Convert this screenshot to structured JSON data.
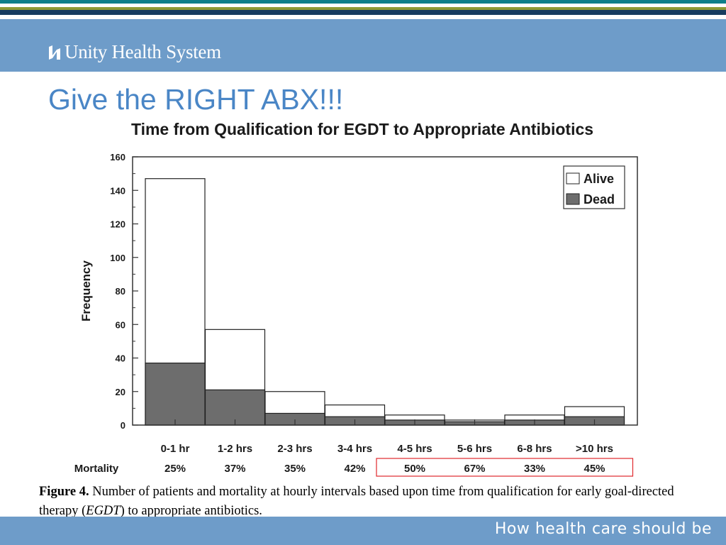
{
  "header": {
    "logo_text": "Unity Health System",
    "logo_icon": "unity-health-mark-icon"
  },
  "slide": {
    "title": "Give the RIGHT ABX!!!"
  },
  "chart_data": {
    "type": "bar",
    "stacked": true,
    "title": "Time from Qualification for EGDT to Appropriate Antibiotics",
    "xlabel": "",
    "ylabel": "Frequency",
    "ylim": [
      0,
      160
    ],
    "yticks": [
      0,
      20,
      40,
      60,
      80,
      100,
      120,
      140,
      160
    ],
    "categories": [
      "0-1 hr",
      "1-2 hrs",
      "2-3 hrs",
      "3-4 hrs",
      "4-5 hrs",
      "5-6 hrs",
      "6-8 hrs",
      ">10 hrs"
    ],
    "series": [
      {
        "name": "Dead",
        "color": "#6d6d6d",
        "values": [
          37,
          21,
          7,
          5,
          3,
          2,
          3,
          5
        ]
      },
      {
        "name": "Alive",
        "color": "#ffffff",
        "values": [
          110,
          36,
          13,
          7,
          3,
          1,
          3,
          6
        ]
      }
    ],
    "legend": {
      "placement": "top-right",
      "entries": [
        "Alive",
        "Dead"
      ]
    },
    "mortality": {
      "label": "Mortality",
      "values": [
        "25%",
        "37%",
        "35%",
        "42%",
        "50%",
        "67%",
        "33%",
        "45%"
      ],
      "highlighted": [
        "4-5 hrs",
        "5-6 hrs",
        "6-8 hrs",
        ">10 hrs"
      ],
      "highlight_color": "#e0282d"
    },
    "grid": false
  },
  "caption": {
    "label": "Figure 4.",
    "text": "Number of patients and mortality at hourly intervals based upon time from qualification for early goal-directed therapy (",
    "italic": "EGDT",
    "tail": ") to appropriate antibiotics."
  },
  "footer": {
    "tagline": "How health care should be"
  },
  "colors": {
    "header_band": "#6e9cc9",
    "title": "#4a86c6",
    "stripe_teal": "#0f7f8a",
    "stripe_olive": "#8e9a36",
    "stripe_navy": "#173c60"
  }
}
